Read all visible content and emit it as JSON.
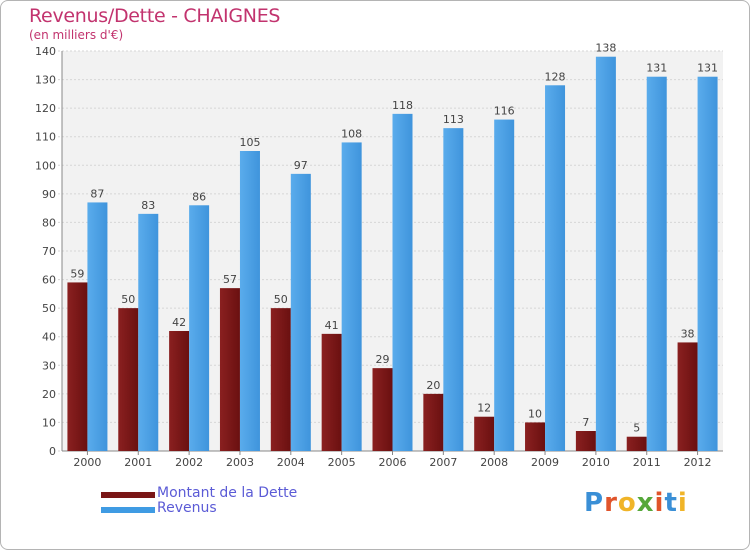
{
  "chart_data": {
    "type": "bar",
    "title": "Revenus/Dette - CHAIGNES",
    "subtitle": "(en milliers d'€)",
    "categories": [
      "2000",
      "2001",
      "2002",
      "2003",
      "2004",
      "2005",
      "2006",
      "2007",
      "2008",
      "2009",
      "2010",
      "2011",
      "2012"
    ],
    "series": [
      {
        "name": "Montant de la Dette",
        "color": "#7a1616",
        "values": [
          59,
          50,
          42,
          57,
          50,
          41,
          29,
          20,
          12,
          10,
          7,
          5,
          38
        ]
      },
      {
        "name": "Revenus",
        "color": "#3f9be3",
        "values": [
          87,
          83,
          86,
          105,
          97,
          108,
          118,
          113,
          116,
          128,
          138,
          131,
          131
        ]
      }
    ],
    "ylim": [
      0,
      140
    ],
    "yticks": [
      0,
      10,
      20,
      30,
      40,
      50,
      60,
      70,
      80,
      90,
      100,
      110,
      120,
      130,
      140
    ],
    "grid": true,
    "legend_position": "bottom-left"
  },
  "logo": {
    "text": "Proxiti",
    "colors": [
      "#3a8fd6",
      "#e0542b",
      "#f0b428",
      "#56a83a",
      "#e0542b",
      "#3a8fd6",
      "#f0b428"
    ]
  }
}
